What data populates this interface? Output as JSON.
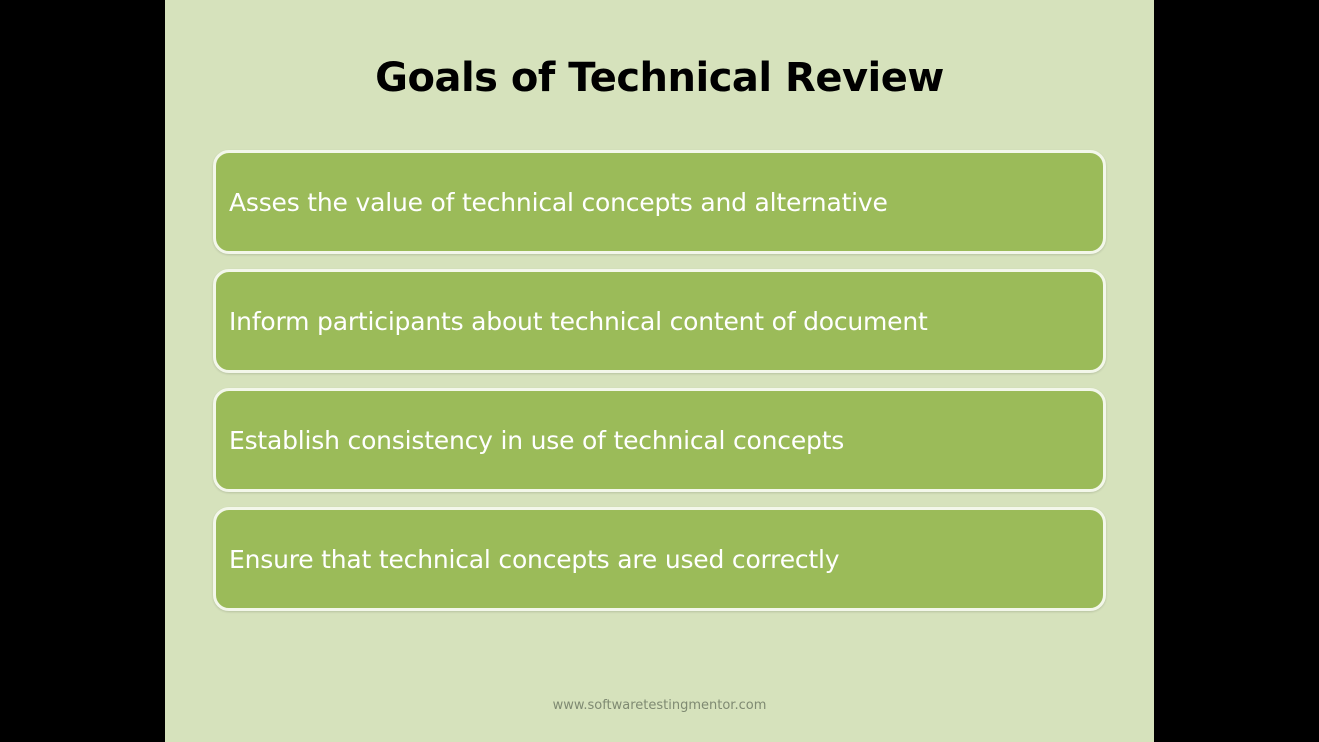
{
  "slide": {
    "title": "Goals of Technical Review",
    "goals": [
      "Asses the value of technical concepts and alternative",
      "Inform participants about technical content of document",
      "Establish consistency in use of technical concepts",
      "Ensure that technical concepts are used correctly"
    ],
    "footer": "www.softwaretestingmentor.com"
  },
  "colors": {
    "background": "#d6e2bc",
    "box_fill": "#9bbb59",
    "box_border": "#f3f7ea",
    "letterbox": "#000000"
  }
}
